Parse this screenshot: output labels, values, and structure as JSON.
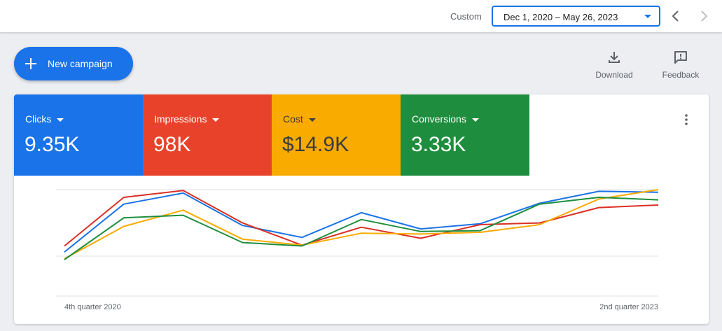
{
  "header": {
    "range_label": "Custom",
    "date_range": "Dec 1, 2020 – May 26, 2023"
  },
  "actions": {
    "new_campaign": "New campaign",
    "download": "Download",
    "feedback": "Feedback"
  },
  "metrics": [
    {
      "label": "Clicks",
      "value": "9.35K",
      "color": "#1a73e8"
    },
    {
      "label": "Impressions",
      "value": "98K",
      "color": "#e8432a"
    },
    {
      "label": "Cost",
      "value": "$14.9K",
      "color": "#f9ab00"
    },
    {
      "label": "Conversions",
      "value": "3.33K",
      "color": "#1e8e3e"
    }
  ],
  "icons": [
    "plus-icon",
    "download-icon",
    "feedback-icon",
    "more-vert-icon",
    "chevron-left-icon",
    "chevron-right-icon",
    "dropdown-caret-icon"
  ],
  "chart_data": {
    "type": "line",
    "x_tick_labels": [
      "4th quarter 2020",
      "2nd quarter 2023"
    ],
    "grid": true,
    "ylim": [
      0,
      100
    ],
    "series": [
      {
        "name": "Clicks",
        "color": "#1a73e8",
        "values": [
          27,
          83,
          96,
          58,
          44,
          73,
          54,
          60,
          84,
          98,
          97
        ]
      },
      {
        "name": "Impressions",
        "color": "#d93025",
        "values": [
          34,
          91,
          99,
          61,
          35,
          56,
          43,
          59,
          61,
          79,
          82
        ]
      },
      {
        "name": "Cost",
        "color": "#f9ab00",
        "values": [
          19,
          57,
          76,
          42,
          35,
          49,
          48,
          50,
          59,
          89,
          100
        ]
      },
      {
        "name": "Conversions",
        "color": "#1e8e3e",
        "values": [
          18,
          67,
          70,
          38,
          34,
          65,
          51,
          52,
          83,
          91,
          88
        ]
      }
    ]
  }
}
